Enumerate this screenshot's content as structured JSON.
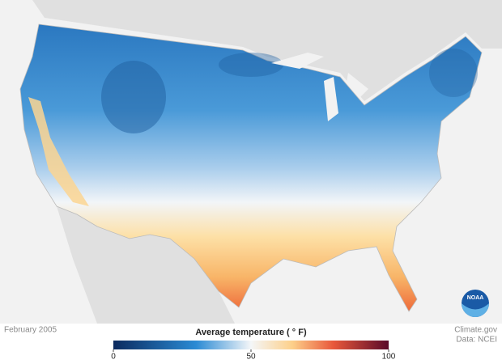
{
  "footer": {
    "date": "February 2005",
    "credit": "Climate.gov",
    "source": "Data: NCEI"
  },
  "legend": {
    "title": "Average temperature ( ° F)",
    "range": [
      0,
      100
    ],
    "ticks": [
      0,
      50,
      100
    ]
  },
  "logo": "NOAA"
}
